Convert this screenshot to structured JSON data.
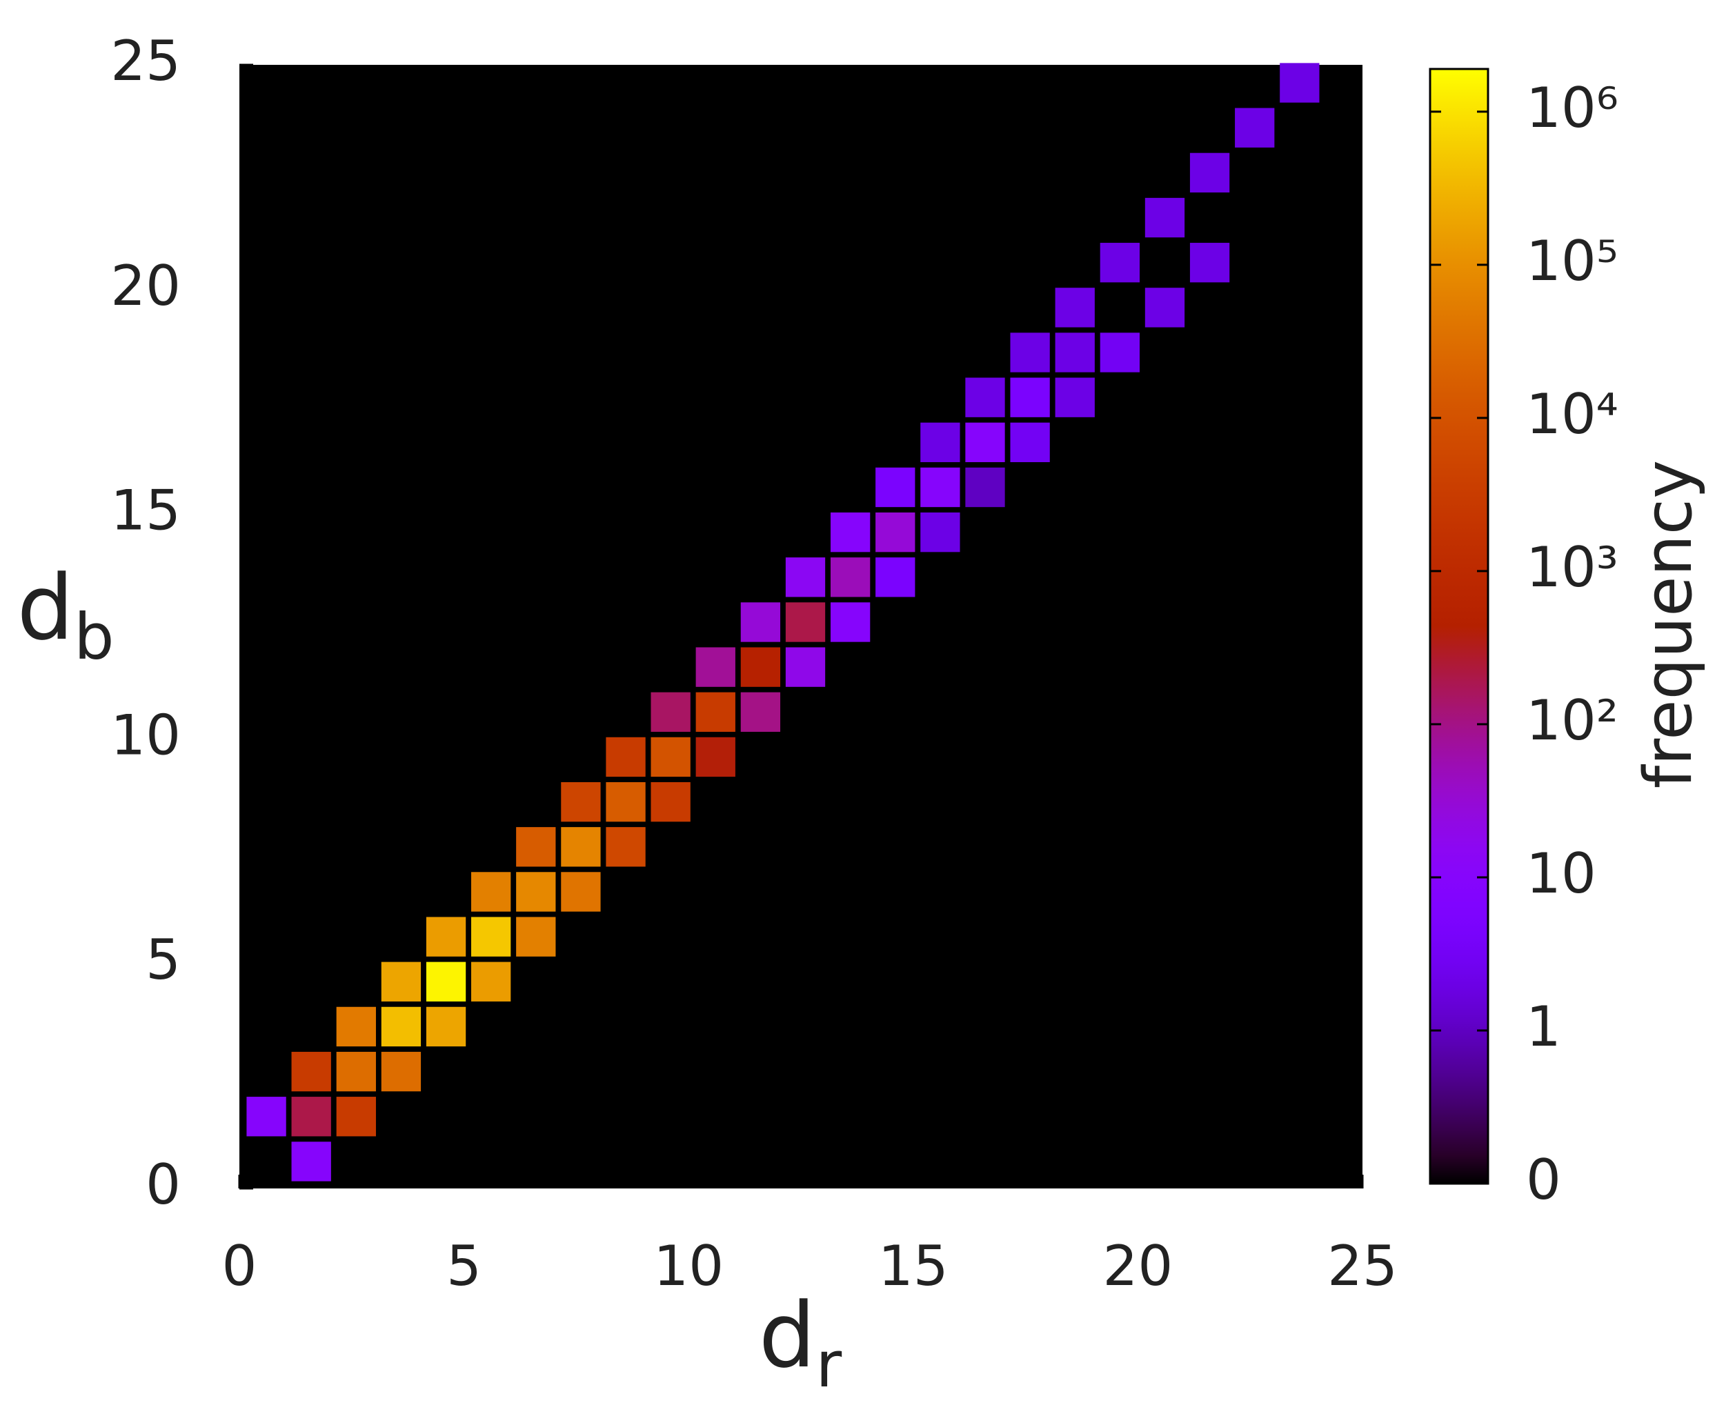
{
  "chart_data": {
    "type": "heatmap",
    "xlabel": {
      "text": "d",
      "subscript": "r"
    },
    "ylabel": {
      "text": "d",
      "subscript": "b"
    },
    "colorbar_label": "frequency",
    "xlim": [
      0,
      25
    ],
    "xticks": [
      0,
      5,
      10,
      15,
      20,
      25
    ],
    "ylim": [
      0,
      25
    ],
    "yticks": [
      0,
      5,
      10,
      15,
      20,
      25
    ],
    "zlim": [
      0,
      1900000
    ],
    "zscale": "log",
    "zticks": [
      0,
      1,
      10,
      {
        "value": 100,
        "label": "10²"
      },
      {
        "value": 1000,
        "label": "10³"
      },
      {
        "value": 10000,
        "label": "10⁴"
      },
      {
        "value": 100000,
        "label": "10⁵"
      },
      {
        "value": 1000000,
        "label": "10⁶"
      }
    ],
    "background": "#000000",
    "x": [
      0,
      1,
      1,
      1,
      2,
      2,
      2,
      3,
      3,
      3,
      4,
      4,
      4,
      5,
      5,
      5,
      6,
      6,
      6,
      7,
      7,
      7,
      8,
      8,
      8,
      9,
      9,
      9,
      10,
      10,
      10,
      11,
      11,
      11,
      12,
      12,
      12,
      13,
      13,
      13,
      14,
      14,
      14,
      15,
      15,
      15,
      16,
      16,
      16,
      17,
      17,
      17,
      18,
      18,
      18,
      19,
      19,
      20,
      20,
      21,
      21,
      22,
      23
    ],
    "y": [
      1,
      0,
      1,
      2,
      1,
      2,
      3,
      2,
      3,
      4,
      3,
      4,
      5,
      4,
      5,
      6,
      5,
      6,
      7,
      6,
      7,
      8,
      7,
      8,
      9,
      8,
      9,
      10,
      9,
      10,
      11,
      10,
      11,
      12,
      11,
      12,
      13,
      12,
      13,
      14,
      13,
      14,
      15,
      14,
      15,
      16,
      15,
      16,
      17,
      16,
      17,
      18,
      17,
      18,
      19,
      18,
      20,
      19,
      21,
      20,
      22,
      23,
      24
    ],
    "values": [
      10,
      10,
      200,
      3000,
      3000,
      30000,
      50000,
      30000,
      400000,
      200000,
      200000,
      1500000,
      150000,
      150000,
      500000,
      60000,
      60000,
      80000,
      15000,
      40000,
      70000,
      5000,
      6000,
      15000,
      3000,
      3000,
      10000,
      150,
      400,
      3000,
      80,
      100,
      500,
      30,
      20,
      200,
      15,
      10,
      50,
      10,
      5,
      30,
      5,
      2,
      10,
      2,
      1,
      10,
      2,
      3,
      5,
      2,
      2,
      2,
      2,
      3,
      2,
      2,
      2,
      2,
      2,
      2,
      2
    ]
  }
}
